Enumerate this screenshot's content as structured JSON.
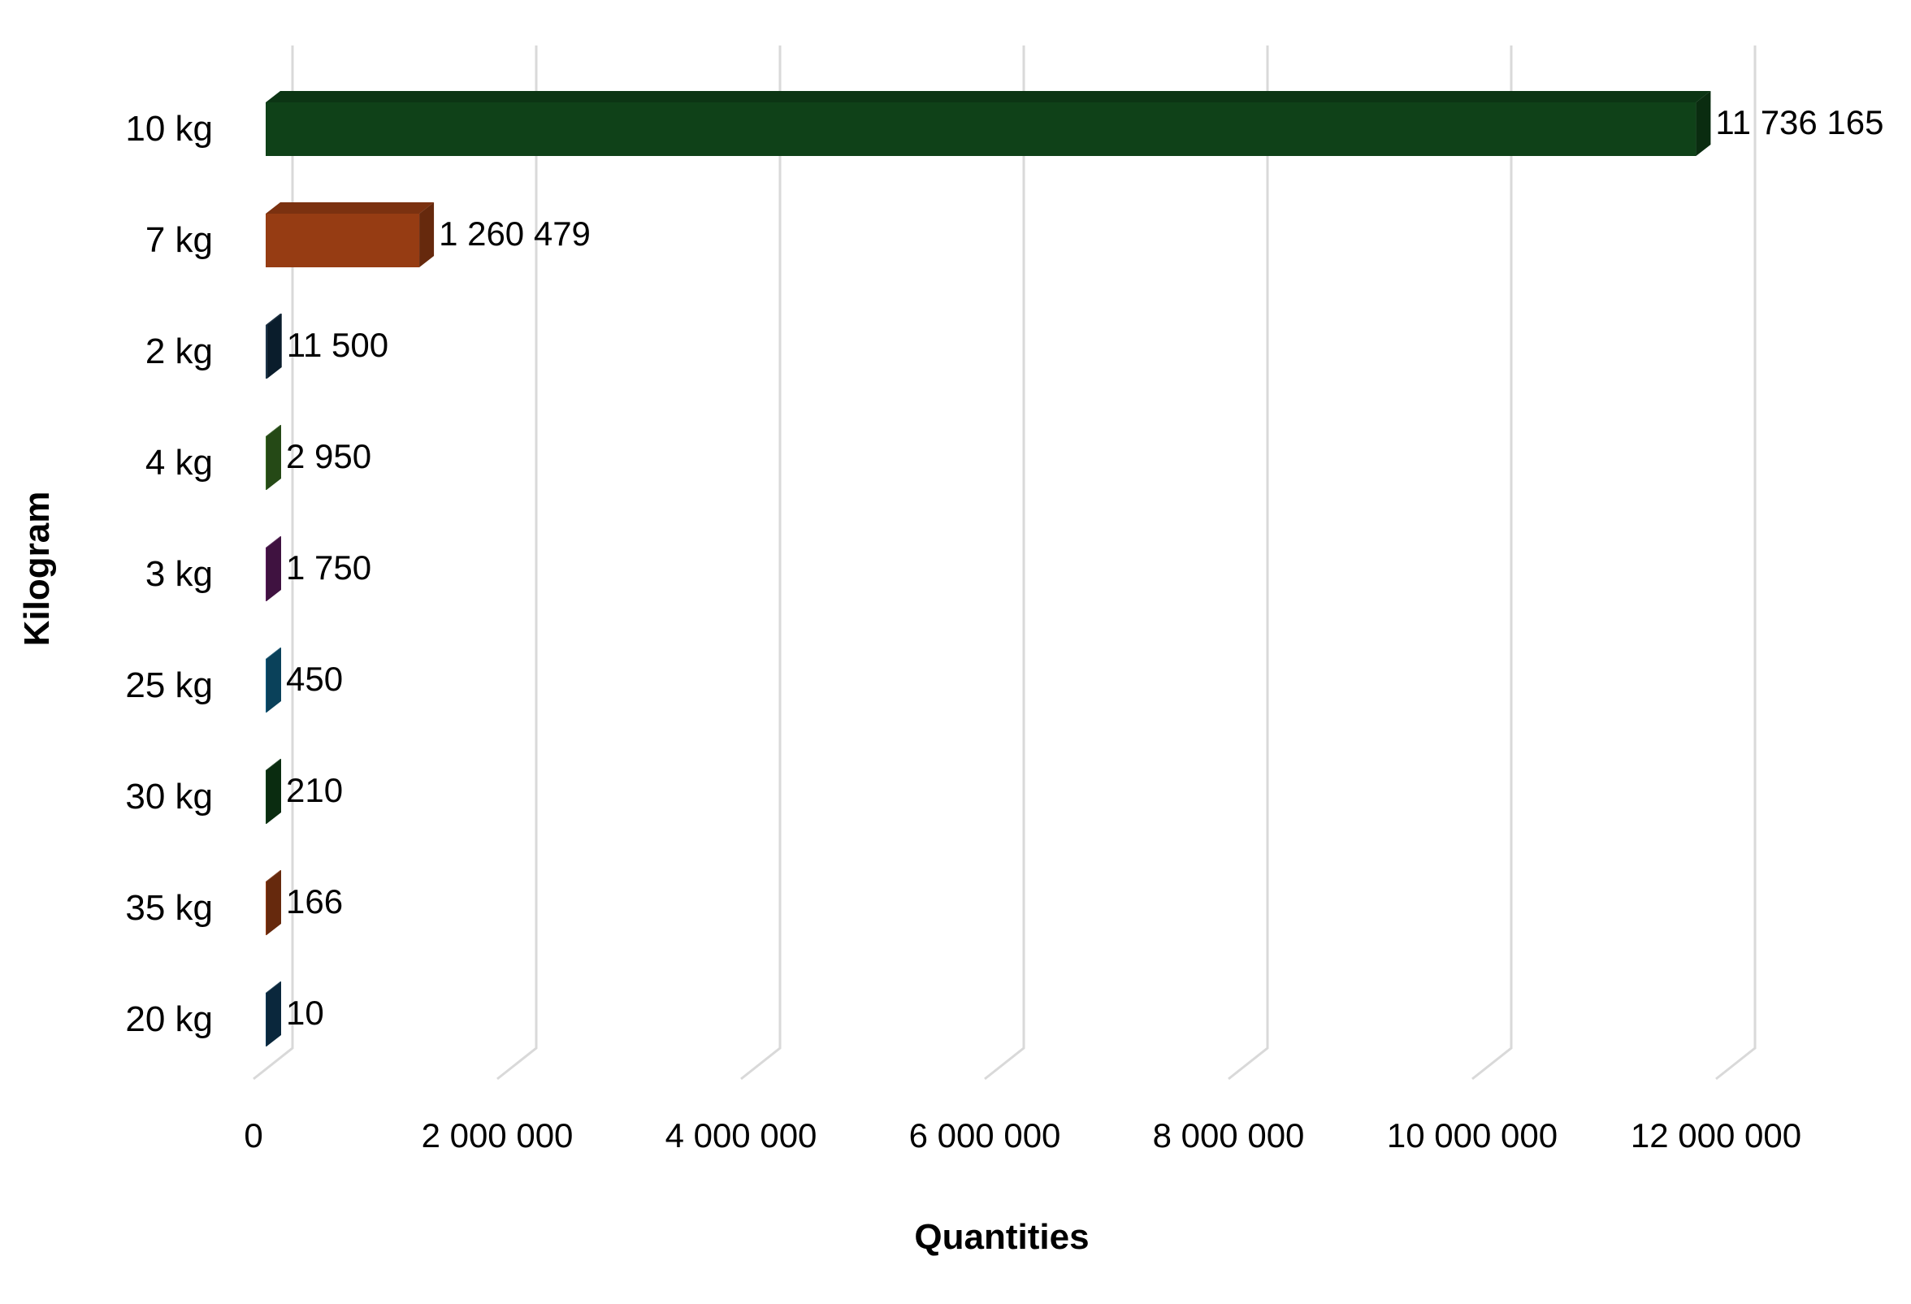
{
  "chart_data": {
    "type": "bar",
    "orientation": "horizontal",
    "style": "3d",
    "xlabel": "Quantities",
    "ylabel": "Kilogram",
    "xlim": [
      0,
      12000000
    ],
    "xticks": [
      "0",
      "2 000 000",
      "4 000 000",
      "6 000 000",
      "8 000 000",
      "10 000 000",
      "12 000 000"
    ],
    "grid": "vertical",
    "categories": [
      "10 kg",
      "7 kg",
      "2 kg",
      "4 kg",
      "3 kg",
      "25 kg",
      "30 kg",
      "35 kg",
      "20 kg"
    ],
    "values": [
      11736165,
      1260479,
      11500,
      2950,
      1750,
      450,
      210,
      166,
      10
    ],
    "value_labels": [
      "11 736 165",
      "1 260 479",
      "11 500",
      "2 950",
      "1 750",
      "450",
      "210",
      "166",
      "10"
    ],
    "colors": [
      "#0f4118",
      "#963c13",
      "#0f2a41",
      "#376b20",
      "#5c1b5e",
      "#0f5f85",
      "#0f4118",
      "#963c13",
      "#0f3a58"
    ]
  }
}
